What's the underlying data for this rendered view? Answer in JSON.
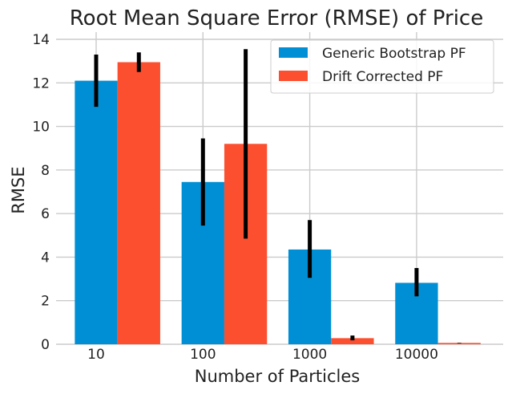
{
  "chart_data": {
    "type": "bar",
    "title": "Root Mean Square Error (RMSE) of Price",
    "xlabel": "Number of Particles",
    "ylabel": "RMSE",
    "categories": [
      "10",
      "100",
      "1000",
      "10000"
    ],
    "ylim": [
      0,
      14
    ],
    "yticks": [
      0,
      2,
      4,
      6,
      8,
      10,
      12,
      14
    ],
    "grid": true,
    "legend_position": "top-right",
    "series": [
      {
        "name": "Generic Bootstrap PF",
        "color": "#008fd5",
        "values": [
          12.1,
          7.45,
          4.35,
          2.82
        ],
        "error_low": [
          10.9,
          5.45,
          3.05,
          2.2
        ],
        "error_high": [
          13.3,
          9.45,
          5.7,
          3.5
        ]
      },
      {
        "name": "Drift Corrected PF",
        "color": "#fc4f30",
        "values": [
          12.95,
          9.2,
          0.28,
          0.06
        ],
        "error_low": [
          12.5,
          4.85,
          0.18,
          0.05
        ],
        "error_high": [
          13.4,
          13.55,
          0.4,
          0.07
        ]
      }
    ]
  }
}
